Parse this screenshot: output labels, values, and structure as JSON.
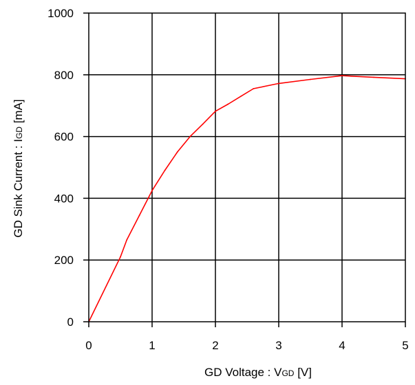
{
  "chart_data": {
    "type": "line",
    "title": "",
    "xlabel": {
      "main": "GD Voltage : V",
      "sub": "GD",
      "unit": " [V]"
    },
    "ylabel": {
      "main": "GD Sink Current : I",
      "sub": "GD",
      "unit": " [mA]"
    },
    "xlim": [
      0,
      5
    ],
    "ylim": [
      0,
      1000
    ],
    "x_ticks": [
      "0",
      "1",
      "2",
      "3",
      "4",
      "5"
    ],
    "y_ticks": [
      "0",
      "200",
      "400",
      "600",
      "800",
      "1000"
    ],
    "x_tick_values": [
      0,
      1,
      2,
      3,
      4,
      5
    ],
    "y_tick_values": [
      0,
      200,
      400,
      600,
      800,
      1000
    ],
    "grid": true,
    "series": [
      {
        "color": "#ff0000",
        "points": [
          [
            0,
            0
          ],
          [
            0.5,
            210
          ],
          [
            0.6,
            265
          ],
          [
            0.8,
            345
          ],
          [
            1.0,
            425
          ],
          [
            1.2,
            490
          ],
          [
            1.4,
            550
          ],
          [
            1.6,
            600
          ],
          [
            1.8,
            640
          ],
          [
            2.0,
            682
          ],
          [
            2.2,
            705
          ],
          [
            2.4,
            730
          ],
          [
            2.6,
            755
          ],
          [
            3.0,
            772
          ],
          [
            3.5,
            785
          ],
          [
            4.0,
            797
          ],
          [
            4.5,
            792
          ],
          [
            5.0,
            787
          ]
        ]
      }
    ]
  }
}
